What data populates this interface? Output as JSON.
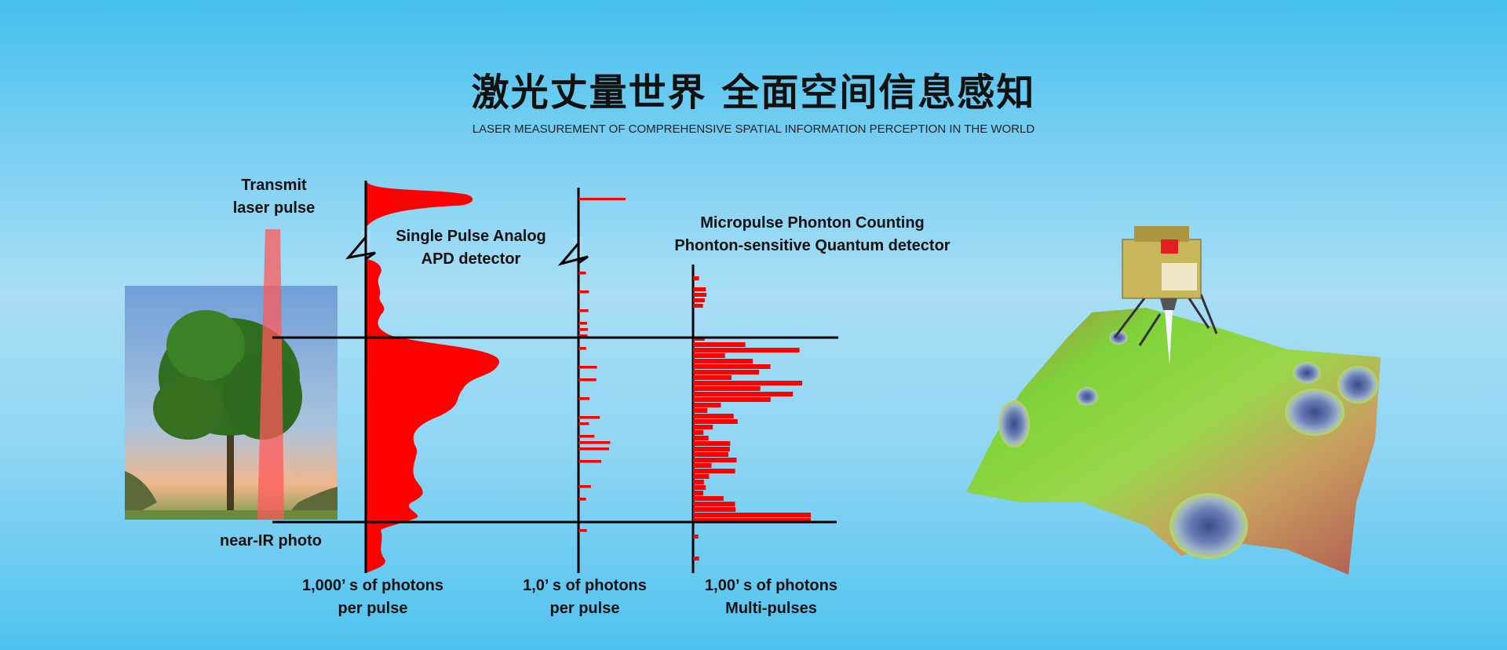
{
  "header": {
    "title": "激光丈量世界 全面空间信息感知",
    "subtitle": "LASER MEASUREMENT OF COMPREHENSIVE SPATIAL INFORMATION PERCEPTION IN THE WORLD"
  },
  "diagram": {
    "transmit_label": [
      "Transmit",
      "laser pulse"
    ],
    "photo_label": "near-IR photo",
    "apd_label": [
      "Single Pulse Analog",
      "APD detector"
    ],
    "micropulse_label": [
      "Micropulse Phonton Counting",
      "Phonton-sensitive Quantum detector"
    ],
    "axis_labels": [
      [
        "1,000’ s of photons",
        "per pulse"
      ],
      [
        "1,0’ s of photons",
        "per pulse"
      ],
      [
        "1,00’ s of photons",
        "Multi-pulses"
      ]
    ],
    "colors": {
      "signal": "#ff0000",
      "beam": "#ff5a5a",
      "axis": "#000000"
    }
  }
}
